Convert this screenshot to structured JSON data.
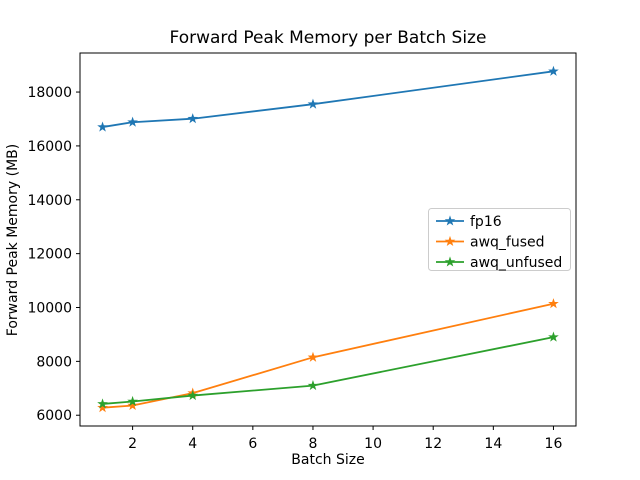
{
  "figure": {
    "background": "#ffffff",
    "axis_color": "#000000",
    "legend_border_color": "#cccccc",
    "legend_background": "#ffffff"
  },
  "chart_data": {
    "type": "line",
    "title": "Forward Peak Memory per Batch Size",
    "xlabel": "Batch Size",
    "ylabel": "Forward Peak Memory (MB)",
    "x": [
      1,
      2,
      4,
      8,
      16
    ],
    "series": [
      {
        "name": "fp16",
        "color": "#1f77b4",
        "values": [
          16700,
          16880,
          17010,
          17550,
          18770
        ]
      },
      {
        "name": "awq_fused",
        "color": "#ff7f0e",
        "values": [
          6280,
          6360,
          6820,
          8150,
          10140
        ]
      },
      {
        "name": "awq_unfused",
        "color": "#2ca02c",
        "values": [
          6420,
          6510,
          6730,
          7100,
          8900
        ]
      }
    ],
    "marker": "star",
    "xlim": [
      0.25,
      16.75
    ],
    "ylim": [
      5600,
      19450
    ],
    "xticks": [
      2,
      4,
      6,
      8,
      10,
      12,
      14,
      16
    ],
    "yticks": [
      6000,
      8000,
      10000,
      12000,
      14000,
      16000,
      18000
    ],
    "grid": false,
    "legend_position": "center-right"
  }
}
